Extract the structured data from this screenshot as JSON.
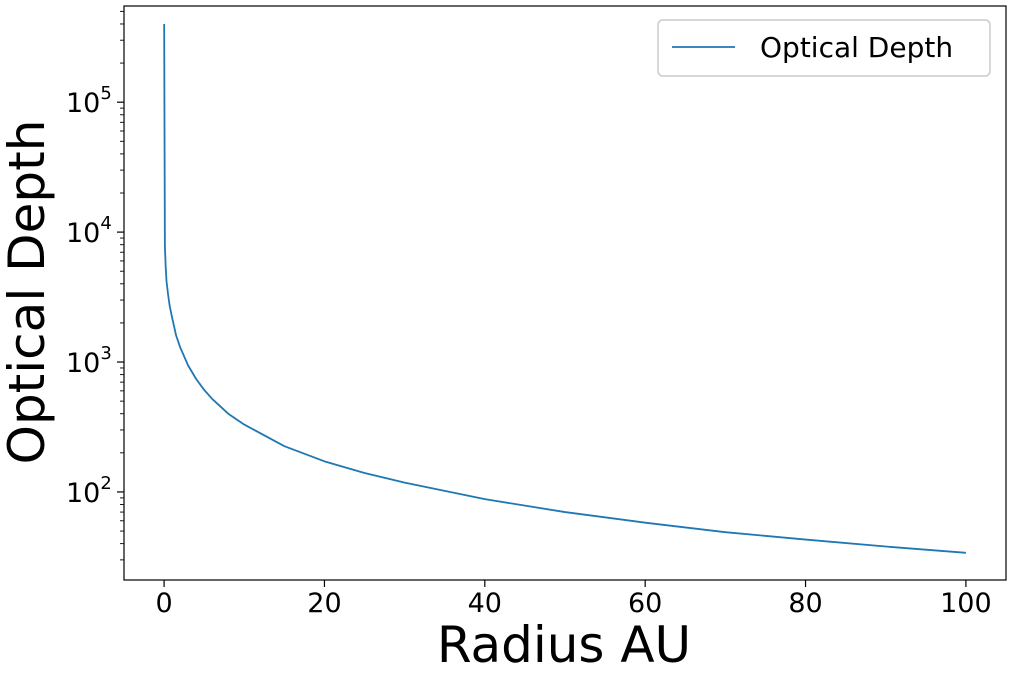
{
  "chart_data": {
    "type": "line",
    "xlabel": "Radius AU",
    "ylabel": "Optical Depth",
    "xscale": "linear",
    "yscale": "log",
    "xlim": [
      -5,
      105
    ],
    "ylim": [
      21,
      550000
    ],
    "xticks": [
      0,
      20,
      40,
      60,
      80,
      100
    ],
    "xtick_labels": [
      "0",
      "20",
      "40",
      "60",
      "80",
      "100"
    ],
    "yticks": [
      100,
      1000,
      10000,
      100000
    ],
    "ytick_labels": [
      {
        "base": "10",
        "exp": "2"
      },
      {
        "base": "10",
        "exp": "3"
      },
      {
        "base": "10",
        "exp": "4"
      },
      {
        "base": "10",
        "exp": "5"
      }
    ],
    "grid": false,
    "legend": {
      "position": "top-right",
      "entries": [
        "Optical Depth"
      ]
    },
    "series": [
      {
        "name": "Optical Depth",
        "color": "#1f77b4",
        "x": [
          0.01,
          0.1,
          0.2,
          0.3,
          0.5,
          0.7,
          1,
          1.5,
          2,
          3,
          4,
          5,
          6,
          8,
          10,
          15,
          20,
          25,
          30,
          40,
          50,
          60,
          70,
          80,
          90,
          100
        ],
        "y": [
          400000,
          7800,
          5400,
          4200,
          3300,
          2700,
          2200,
          1600,
          1300,
          940,
          740,
          610,
          520,
          400,
          330,
          225,
          172,
          140,
          118,
          88,
          70,
          58,
          49,
          43,
          38,
          34
        ]
      }
    ]
  }
}
